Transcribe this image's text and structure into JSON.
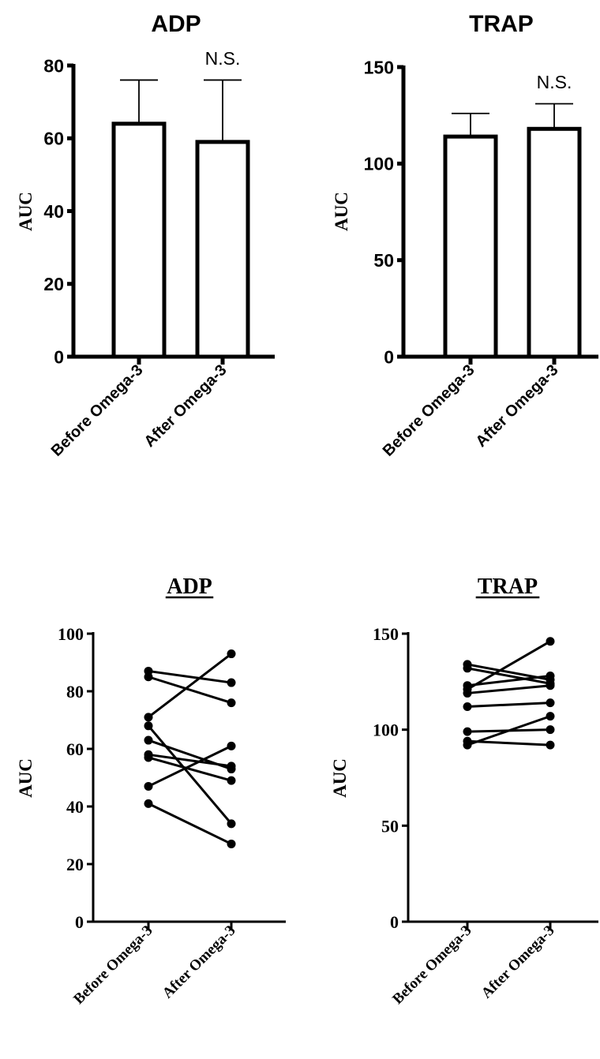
{
  "chart_data": [
    {
      "type": "bar",
      "title": "ADP",
      "ylabel": "AUC",
      "categories": [
        "Before Omega-3",
        "After Omega-3"
      ],
      "values": [
        64,
        59
      ],
      "error_upper": [
        76,
        76
      ],
      "ylim": [
        0,
        80
      ],
      "yticks": [
        "0",
        "20",
        "40",
        "60",
        "80"
      ],
      "annotation": "N.S.",
      "grid": false
    },
    {
      "type": "bar",
      "title": "TRAP",
      "ylabel": "AUC",
      "categories": [
        "Before Omega-3",
        "After Omega-3"
      ],
      "values": [
        114,
        118
      ],
      "error_upper": [
        126,
        131
      ],
      "ylim": [
        0,
        150
      ],
      "yticks": [
        "0",
        "50",
        "100",
        "150"
      ],
      "annotation": "N.S.",
      "grid": false
    },
    {
      "type": "line",
      "title": "ADP",
      "ylabel": "AUC",
      "categories": [
        "Before Omega-3",
        "After Omega-3"
      ],
      "pairs": [
        [
          87,
          83
        ],
        [
          85,
          76
        ],
        [
          71,
          93
        ],
        [
          68,
          34
        ],
        [
          63,
          53
        ],
        [
          58,
          54
        ],
        [
          57,
          49
        ],
        [
          47,
          61
        ],
        [
          41,
          27
        ]
      ],
      "ylim": [
        0,
        100
      ],
      "yticks": [
        "0",
        "20",
        "40",
        "60",
        "80",
        "100"
      ],
      "grid": false
    },
    {
      "type": "line",
      "title": "TRAP",
      "ylabel": "AUC",
      "categories": [
        "Before Omega-3",
        "After Omega-3"
      ],
      "pairs": [
        [
          134,
          126
        ],
        [
          132,
          124
        ],
        [
          123,
          128
        ],
        [
          121,
          146
        ],
        [
          119,
          123
        ],
        [
          112,
          114
        ],
        [
          99,
          100
        ],
        [
          94,
          92
        ],
        [
          92,
          107
        ]
      ],
      "ylim": [
        0,
        150
      ],
      "yticks": [
        "0",
        "50",
        "100",
        "150"
      ],
      "grid": false
    }
  ],
  "colors": {
    "ink": "#000000",
    "bar_fill": "#ffffff"
  }
}
